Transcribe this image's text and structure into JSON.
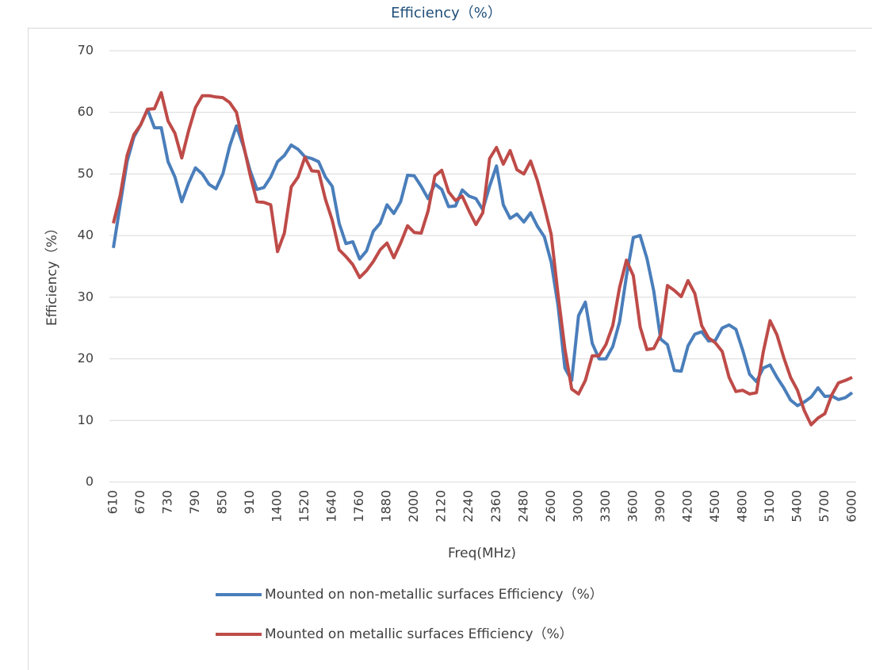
{
  "chart_data": {
    "type": "line",
    "title": "Efficiency（%）",
    "x_label": "Freq(MHz)",
    "y_label": "Efficiency（%）",
    "categories": [
      "610",
      null,
      null,
      null,
      "670",
      null,
      null,
      null,
      "730",
      null,
      null,
      null,
      "790",
      null,
      null,
      null,
      "850",
      null,
      null,
      null,
      "910",
      null,
      null,
      null,
      "1400",
      null,
      null,
      null,
      "1520",
      null,
      null,
      null,
      "1640",
      null,
      null,
      null,
      "1760",
      null,
      null,
      null,
      "1880",
      null,
      null,
      null,
      "2000",
      null,
      null,
      null,
      "2120",
      null,
      null,
      null,
      "2240",
      null,
      null,
      null,
      "2360",
      null,
      null,
      null,
      "2480",
      null,
      null,
      null,
      "2600",
      null,
      null,
      null,
      "3000",
      null,
      null,
      null,
      "3300",
      null,
      null,
      null,
      "3600",
      null,
      null,
      null,
      "3900",
      null,
      null,
      null,
      "4200",
      null,
      null,
      null,
      "4500",
      null,
      null,
      null,
      "4800",
      null,
      null,
      null,
      "5100",
      null,
      null,
      null,
      "5400",
      null,
      null,
      null,
      "5700",
      null,
      null,
      null,
      "6000"
    ],
    "series": [
      {
        "name": "Mounted on non-metallic surfaces Efficiency（%）",
        "color": "#4a7ebb",
        "values": [
          38,
          45,
          52,
          56,
          58,
          60.5,
          57.5,
          57.5,
          52,
          49.5,
          45.5,
          48.5,
          51,
          50,
          48.3,
          47.6,
          50,
          54.5,
          57.8,
          54.5,
          50.5,
          47.5,
          47.8,
          49.5,
          52,
          53,
          54.7,
          54,
          52.8,
          52.5,
          52,
          49.5,
          48,
          42,
          38.7,
          39,
          36.2,
          37.5,
          40.7,
          42,
          45,
          43.6,
          45.5,
          49.8,
          49.7,
          48,
          46,
          48.4,
          47.5,
          44.7,
          44.8,
          47.4,
          46.4,
          46,
          44.2,
          48,
          51.3,
          45,
          42.8,
          43.5,
          42.2,
          43.7,
          41.5,
          39.8,
          35.7,
          28.7,
          18.5,
          16.5,
          27,
          29.2,
          22.5,
          20,
          20,
          22,
          26,
          33.4,
          39.7,
          40,
          36.3,
          31,
          23.2,
          22.3,
          18.1,
          18,
          22.1,
          24,
          24.4,
          22.9,
          23,
          25,
          25.5,
          24.8,
          21.4,
          17.5,
          16.3,
          18.5,
          19,
          17,
          15.3,
          13.3,
          12.4,
          13,
          13.8,
          15.3,
          13.9,
          14,
          13.4,
          13.7,
          14.5
        ]
      },
      {
        "name": "Mounted on metallic surfaces Efficiency（%）",
        "color": "#be4b48",
        "values": [
          42,
          46.5,
          53,
          56.4,
          58,
          60.5,
          60.6,
          63.2,
          58.6,
          56.6,
          52.6,
          57,
          60.8,
          62.7,
          62.7,
          62.5,
          62.4,
          61.6,
          60,
          54.8,
          49.8,
          45.5,
          45.4,
          45,
          37.4,
          40.4,
          47.9,
          49.5,
          52.7,
          50.5,
          50.4,
          45.9,
          42.5,
          37.7,
          36.6,
          35.3,
          33.2,
          34.3,
          35.8,
          37.7,
          38.8,
          36.4,
          38.8,
          41.6,
          40.5,
          40.4,
          44,
          49.7,
          50.6,
          47.1,
          45.7,
          46.4,
          44,
          41.8,
          43.7,
          52.5,
          54.3,
          51.6,
          53.8,
          50.7,
          50,
          52.1,
          48.9,
          44.7,
          40.2,
          30.5,
          21.6,
          15.1,
          14.3,
          16.5,
          20.5,
          20.5,
          22.3,
          25.4,
          31.6,
          36,
          33.5,
          25.2,
          21.5,
          21.7,
          23.9,
          31.9,
          31.1,
          30.1,
          32.7,
          30.6,
          25.4,
          23.4,
          22.6,
          21.2,
          17,
          14.7,
          14.9,
          14.3,
          14.5,
          21.1,
          26.2,
          23.9,
          20.2,
          17,
          14.9,
          11.6,
          9.3,
          10.4,
          11.1,
          14.1,
          16.1,
          16.5,
          17
        ]
      }
    ],
    "ylim": [
      0,
      70
    ],
    "yticks": [
      0,
      10,
      20,
      30,
      40,
      50,
      60,
      70
    ],
    "grid": true
  }
}
